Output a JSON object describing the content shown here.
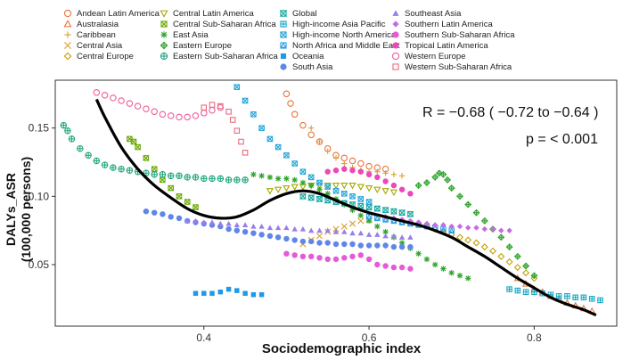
{
  "chart_data": {
    "type": "scatter",
    "title": "",
    "xlabel": "Sociodemographic index",
    "ylabel_line1": "DALYs_ASR",
    "ylabel_line2": "(100,000 persons)",
    "xlim": [
      0.22,
      0.9
    ],
    "ylim": [
      0.005,
      0.185
    ],
    "xticks": [
      0.4,
      0.6,
      0.8
    ],
    "yticks": [
      0.05,
      0.1,
      0.15
    ],
    "xtick_labels": [
      "0.4",
      "0.6",
      "0.8"
    ],
    "ytick_labels": [
      "0.05",
      "0.10",
      "0.15"
    ],
    "grid": false,
    "legend_placement": "top",
    "annotations": {
      "correlation": "R = −0.68 ( −0.72 to −0.64 )",
      "pvalue": "p = < 0.001"
    },
    "series": [
      {
        "name": "Andean Latin America",
        "color": "#e8743b",
        "marker": "circle-open",
        "x": [
          0.5,
          0.505,
          0.51,
          0.52,
          0.53,
          0.54,
          0.55,
          0.56,
          0.57,
          0.58,
          0.59,
          0.6,
          0.61,
          0.62
        ],
        "y": [
          0.175,
          0.168,
          0.16,
          0.152,
          0.145,
          0.14,
          0.135,
          0.13,
          0.128,
          0.126,
          0.124,
          0.122,
          0.121,
          0.12
        ]
      },
      {
        "name": "Australasia",
        "color": "#e8743b",
        "marker": "triangle-open",
        "x": [
          0.78,
          0.79,
          0.8,
          0.81,
          0.82,
          0.83,
          0.84,
          0.85,
          0.86,
          0.87
        ],
        "y": [
          0.04,
          0.036,
          0.032,
          0.03,
          0.027,
          0.025,
          0.022,
          0.02,
          0.018,
          0.016
        ]
      },
      {
        "name": "Caribbean",
        "color": "#d9a032",
        "marker": "plus",
        "x": [
          0.53,
          0.54,
          0.55,
          0.56,
          0.57,
          0.58,
          0.59,
          0.6,
          0.61,
          0.62,
          0.63,
          0.64
        ],
        "y": [
          0.15,
          0.14,
          0.133,
          0.128,
          0.124,
          0.121,
          0.119,
          0.118,
          0.118,
          0.117,
          0.116,
          0.115
        ]
      },
      {
        "name": "Central Asia",
        "color": "#d9a032",
        "marker": "cross",
        "x": [
          0.52,
          0.53,
          0.54,
          0.55,
          0.56,
          0.57,
          0.58,
          0.59,
          0.6
        ],
        "y": [
          0.065,
          0.068,
          0.071,
          0.074,
          0.076,
          0.078,
          0.08,
          0.082,
          0.083
        ]
      },
      {
        "name": "Central Europe",
        "color": "#c5a000",
        "marker": "diamond-open",
        "x": [
          0.66,
          0.67,
          0.68,
          0.69,
          0.7,
          0.71,
          0.72,
          0.73,
          0.74,
          0.75,
          0.76,
          0.77,
          0.78,
          0.79,
          0.8
        ],
        "y": [
          0.08,
          0.078,
          0.076,
          0.074,
          0.072,
          0.07,
          0.068,
          0.066,
          0.063,
          0.06,
          0.056,
          0.052,
          0.048,
          0.044,
          0.04
        ]
      },
      {
        "name": "Central Latin America",
        "color": "#a6a800",
        "marker": "triangle-down-open",
        "x": [
          0.48,
          0.49,
          0.5,
          0.51,
          0.52,
          0.53,
          0.54,
          0.55,
          0.56,
          0.57,
          0.58,
          0.59,
          0.6,
          0.61,
          0.62,
          0.63
        ],
        "y": [
          0.104,
          0.105,
          0.106,
          0.107,
          0.107,
          0.108,
          0.108,
          0.108,
          0.108,
          0.108,
          0.108,
          0.107,
          0.106,
          0.105,
          0.104,
          0.103
        ]
      },
      {
        "name": "Central Sub-Saharan Africa",
        "color": "#6aa800",
        "marker": "square-cross",
        "x": [
          0.31,
          0.315,
          0.32,
          0.33,
          0.34,
          0.35,
          0.36,
          0.37,
          0.38,
          0.39
        ],
        "y": [
          0.142,
          0.14,
          0.136,
          0.128,
          0.12,
          0.112,
          0.106,
          0.1,
          0.096,
          0.092
        ]
      },
      {
        "name": "East Asia",
        "color": "#2fa52b",
        "marker": "asterisk",
        "x": [
          0.46,
          0.47,
          0.48,
          0.49,
          0.5,
          0.51,
          0.52,
          0.53,
          0.54,
          0.55,
          0.56,
          0.57,
          0.58,
          0.59,
          0.6,
          0.61,
          0.62,
          0.63,
          0.64,
          0.65,
          0.66,
          0.67,
          0.68,
          0.69,
          0.7,
          0.71,
          0.72
        ],
        "y": [
          0.116,
          0.115,
          0.114,
          0.113,
          0.113,
          0.112,
          0.11,
          0.108,
          0.105,
          0.102,
          0.098,
          0.094,
          0.09,
          0.086,
          0.082,
          0.078,
          0.074,
          0.07,
          0.066,
          0.062,
          0.058,
          0.054,
          0.05,
          0.047,
          0.044,
          0.042,
          0.04
        ]
      },
      {
        "name": "Eastern Europe",
        "color": "#2fa52b",
        "marker": "diamond-cross",
        "x": [
          0.66,
          0.67,
          0.68,
          0.685,
          0.69,
          0.695,
          0.7,
          0.71,
          0.72,
          0.73,
          0.74,
          0.75,
          0.76,
          0.77,
          0.78,
          0.79,
          0.8
        ],
        "y": [
          0.108,
          0.11,
          0.114,
          0.117,
          0.116,
          0.112,
          0.106,
          0.1,
          0.094,
          0.088,
          0.082,
          0.076,
          0.07,
          0.063,
          0.056,
          0.049,
          0.042
        ]
      },
      {
        "name": "Eastern Sub-Saharan Africa",
        "color": "#1fa77d",
        "marker": "circle-plus",
        "x": [
          0.23,
          0.235,
          0.24,
          0.25,
          0.26,
          0.27,
          0.28,
          0.29,
          0.3,
          0.31,
          0.32,
          0.33,
          0.34,
          0.35,
          0.36,
          0.37,
          0.38,
          0.39,
          0.4,
          0.41,
          0.42,
          0.43,
          0.44,
          0.45
        ],
        "y": [
          0.152,
          0.148,
          0.142,
          0.135,
          0.13,
          0.126,
          0.123,
          0.121,
          0.12,
          0.119,
          0.118,
          0.117,
          0.116,
          0.116,
          0.115,
          0.115,
          0.114,
          0.114,
          0.113,
          0.113,
          0.113,
          0.112,
          0.112,
          0.112
        ]
      },
      {
        "name": "Global",
        "color": "#19a8a0",
        "marker": "hourglass",
        "x": [
          0.52,
          0.53,
          0.54,
          0.55,
          0.56,
          0.57,
          0.58,
          0.59,
          0.6,
          0.61,
          0.62,
          0.63,
          0.64,
          0.65
        ],
        "y": [
          0.1,
          0.099,
          0.098,
          0.097,
          0.096,
          0.095,
          0.094,
          0.093,
          0.092,
          0.091,
          0.09,
          0.089,
          0.088,
          0.087
        ]
      },
      {
        "name": "High-income Asia Pacific",
        "color": "#17a9c7",
        "marker": "square-plus",
        "x": [
          0.77,
          0.78,
          0.79,
          0.8,
          0.81,
          0.82,
          0.83,
          0.84,
          0.85,
          0.86,
          0.87,
          0.88
        ],
        "y": [
          0.032,
          0.031,
          0.03,
          0.03,
          0.029,
          0.028,
          0.027,
          0.027,
          0.026,
          0.026,
          0.025,
          0.024
        ]
      },
      {
        "name": "High-income North America",
        "color": "#24a5dc",
        "marker": "square-x",
        "x": [
          0.44,
          0.45,
          0.46,
          0.47,
          0.48,
          0.49,
          0.5,
          0.51,
          0.52,
          0.53,
          0.54,
          0.55,
          0.56,
          0.57,
          0.58,
          0.59,
          0.6
        ],
        "y": [
          0.18,
          0.17,
          0.16,
          0.15,
          0.142,
          0.136,
          0.13,
          0.124,
          0.118,
          0.114,
          0.11,
          0.107,
          0.104,
          0.102,
          0.1,
          0.098,
          0.096
        ]
      },
      {
        "name": "North Africa and Middle East",
        "color": "#2f9ee0",
        "marker": "square-triangle",
        "x": [
          0.6,
          0.61,
          0.62,
          0.63,
          0.64,
          0.65,
          0.66,
          0.67,
          0.68,
          0.69,
          0.7
        ],
        "y": [
          0.085,
          0.084,
          0.083,
          0.082,
          0.081,
          0.08,
          0.079,
          0.078,
          0.077,
          0.076,
          0.075
        ]
      },
      {
        "name": "Oceania",
        "color": "#1a9ae8",
        "marker": "square-filled",
        "x": [
          0.39,
          0.4,
          0.41,
          0.42,
          0.43,
          0.44,
          0.45,
          0.46,
          0.47
        ],
        "y": [
          0.029,
          0.029,
          0.029,
          0.03,
          0.032,
          0.031,
          0.029,
          0.028,
          0.028
        ]
      },
      {
        "name": "South Asia",
        "color": "#5f86e8",
        "marker": "circle-filled",
        "x": [
          0.33,
          0.34,
          0.35,
          0.36,
          0.37,
          0.38,
          0.39,
          0.4,
          0.41,
          0.42,
          0.43,
          0.44,
          0.45,
          0.46,
          0.47,
          0.48,
          0.49,
          0.5,
          0.51,
          0.52,
          0.53,
          0.54,
          0.55,
          0.56,
          0.57,
          0.58,
          0.59,
          0.6,
          0.61,
          0.62,
          0.63,
          0.64,
          0.65
        ],
        "y": [
          0.089,
          0.088,
          0.087,
          0.085,
          0.084,
          0.082,
          0.081,
          0.08,
          0.079,
          0.078,
          0.076,
          0.075,
          0.074,
          0.073,
          0.072,
          0.071,
          0.07,
          0.069,
          0.068,
          0.067,
          0.067,
          0.066,
          0.066,
          0.065,
          0.065,
          0.065,
          0.064,
          0.064,
          0.064,
          0.064,
          0.063,
          0.063,
          0.063
        ]
      },
      {
        "name": "Southeast Asia",
        "color": "#9a7ee8",
        "marker": "triangle-filled",
        "x": [
          0.38,
          0.39,
          0.4,
          0.41,
          0.42,
          0.43,
          0.44,
          0.45,
          0.46,
          0.47,
          0.48,
          0.49,
          0.5,
          0.51,
          0.52,
          0.53,
          0.54,
          0.55,
          0.56,
          0.57,
          0.58,
          0.59,
          0.6,
          0.61,
          0.62,
          0.63,
          0.64,
          0.65
        ],
        "y": [
          0.082,
          0.082,
          0.081,
          0.081,
          0.08,
          0.08,
          0.079,
          0.079,
          0.078,
          0.078,
          0.077,
          0.077,
          0.077,
          0.076,
          0.076,
          0.075,
          0.075,
          0.075,
          0.074,
          0.074,
          0.073,
          0.073,
          0.072,
          0.072,
          0.071,
          0.071,
          0.07,
          0.07
        ]
      },
      {
        "name": "Southern Latin America",
        "color": "#c56be3",
        "marker": "diamond-filled",
        "x": [
          0.62,
          0.63,
          0.64,
          0.65,
          0.66,
          0.67,
          0.68,
          0.69,
          0.7,
          0.71,
          0.72,
          0.73,
          0.74,
          0.75,
          0.76,
          0.77
        ],
        "y": [
          0.085,
          0.084,
          0.083,
          0.082,
          0.081,
          0.08,
          0.079,
          0.079,
          0.078,
          0.078,
          0.077,
          0.077,
          0.076,
          0.076,
          0.075,
          0.075
        ]
      },
      {
        "name": "Southern Sub-Saharan Africa",
        "color": "#e55ad8",
        "marker": "circle-filled",
        "x": [
          0.5,
          0.51,
          0.52,
          0.53,
          0.54,
          0.55,
          0.56,
          0.57,
          0.58,
          0.59,
          0.6,
          0.61,
          0.62,
          0.63,
          0.64,
          0.65
        ],
        "y": [
          0.058,
          0.057,
          0.056,
          0.056,
          0.055,
          0.054,
          0.054,
          0.055,
          0.056,
          0.057,
          0.054,
          0.05,
          0.049,
          0.048,
          0.048,
          0.047
        ]
      },
      {
        "name": "Tropical Latin America",
        "color": "#ee47b8",
        "marker": "circle-filled",
        "x": [
          0.55,
          0.56,
          0.57,
          0.58,
          0.59,
          0.6,
          0.61,
          0.62,
          0.63,
          0.64,
          0.65
        ],
        "y": [
          0.118,
          0.119,
          0.12,
          0.119,
          0.118,
          0.116,
          0.114,
          0.111,
          0.108,
          0.105,
          0.102
        ]
      },
      {
        "name": "Western Europe",
        "color": "#ec5f9a",
        "marker": "circle-open",
        "x": [
          0.27,
          0.28,
          0.29,
          0.3,
          0.31,
          0.32,
          0.33,
          0.34,
          0.35,
          0.36,
          0.37,
          0.38,
          0.39,
          0.4,
          0.41,
          0.42
        ],
        "y": [
          0.176,
          0.174,
          0.172,
          0.17,
          0.168,
          0.166,
          0.164,
          0.162,
          0.16,
          0.159,
          0.158,
          0.158,
          0.159,
          0.161,
          0.163,
          0.165
        ]
      },
      {
        "name": "Western Sub-Saharan Africa",
        "color": "#ec6a7b",
        "marker": "square-open",
        "x": [
          0.4,
          0.41,
          0.42,
          0.43,
          0.435,
          0.44,
          0.445,
          0.45
        ],
        "y": [
          0.165,
          0.167,
          0.166,
          0.162,
          0.156,
          0.148,
          0.14,
          0.132
        ]
      }
    ],
    "fit_curve": {
      "name": "overall fit",
      "color": "#000000",
      "x": [
        0.27,
        0.28,
        0.3,
        0.32,
        0.34,
        0.36,
        0.38,
        0.4,
        0.42,
        0.44,
        0.46,
        0.48,
        0.5,
        0.52,
        0.54,
        0.56,
        0.58,
        0.6,
        0.62,
        0.64,
        0.66,
        0.68,
        0.7,
        0.72,
        0.74,
        0.76,
        0.78,
        0.8,
        0.82,
        0.84,
        0.86,
        0.875
      ],
      "y": [
        0.171,
        0.158,
        0.136,
        0.12,
        0.108,
        0.099,
        0.091,
        0.086,
        0.084,
        0.085,
        0.09,
        0.097,
        0.102,
        0.104,
        0.102,
        0.097,
        0.092,
        0.088,
        0.085,
        0.082,
        0.079,
        0.075,
        0.07,
        0.063,
        0.056,
        0.048,
        0.04,
        0.033,
        0.026,
        0.021,
        0.017,
        0.013
      ]
    }
  }
}
